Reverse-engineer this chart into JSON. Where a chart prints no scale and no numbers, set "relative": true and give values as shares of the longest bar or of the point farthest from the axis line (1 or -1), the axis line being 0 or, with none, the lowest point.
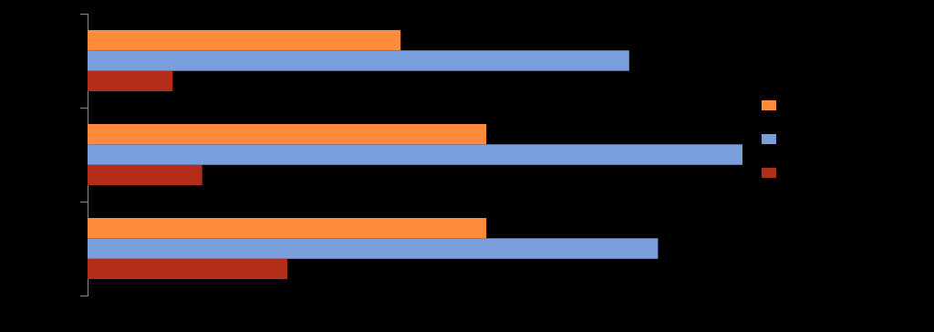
{
  "chart_data": {
    "type": "bar",
    "orientation": "horizontal",
    "relative": true,
    "categories": [
      null,
      null,
      null
    ],
    "series": [
      {
        "color": "#ff8c3c",
        "values": [
          0.478,
          0.609,
          0.609
        ]
      },
      {
        "color": "#7a9edc",
        "values": [
          0.827,
          1,
          0.871
        ]
      },
      {
        "color": "#b42d19",
        "values": [
          0.13,
          0.175,
          0.305
        ]
      }
    ]
  }
}
